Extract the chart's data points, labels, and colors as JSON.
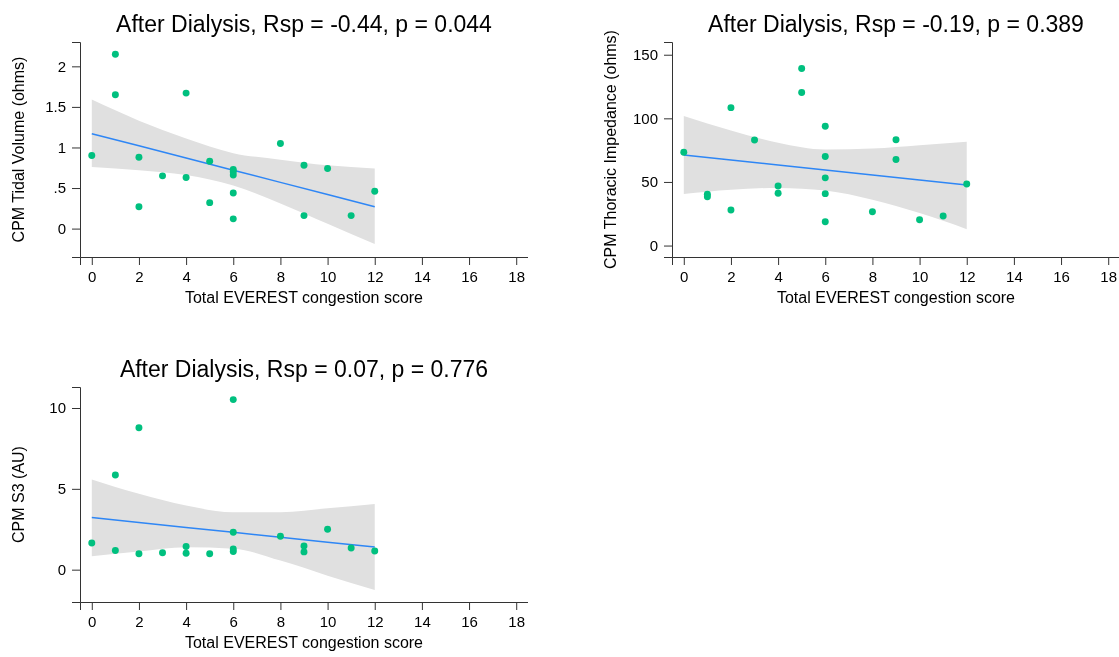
{
  "chart_data": [
    {
      "type": "scatter",
      "title": "After Dialysis, Rsp = -0.44, p = 0.044",
      "xlabel": "Total EVEREST congestion score",
      "ylabel": "CPM Tidal Volume (ohms)",
      "xlim": [
        -0.5,
        18.5
      ],
      "xticks": [
        0,
        2,
        4,
        6,
        8,
        10,
        12,
        14,
        16,
        18
      ],
      "ylim": [
        -0.35,
        2.3
      ],
      "yticks": [
        0,
        {
          "value": 0.5,
          "label": ".5"
        },
        1,
        {
          "value": 1.5,
          "label": "1.5"
        },
        2
      ],
      "grid": false,
      "series": [
        {
          "marker": "circle",
          "color": "#00c07f",
          "x": [
            0,
            1,
            1,
            2,
            2,
            3,
            4,
            4,
            5,
            5,
            6,
            6,
            6,
            6,
            6,
            8,
            9,
            9,
            10,
            11,
            12
          ],
          "values": [
            0.9,
            2.15,
            1.65,
            0.88,
            0.27,
            0.65,
            1.67,
            0.63,
            0.83,
            0.32,
            0.73,
            0.66,
            0.7,
            0.44,
            0.12,
            1.05,
            0.78,
            0.16,
            0.74,
            0.16,
            0.46
          ]
        },
        {
          "type": "line",
          "marker": "none",
          "color": "#2e86f5",
          "line_style": "solid",
          "x": [
            0,
            2,
            4,
            6,
            8,
            10,
            12
          ],
          "values": [
            1.17,
            1.02,
            0.87,
            0.72,
            0.57,
            0.42,
            0.27
          ],
          "lower": [
            0.76,
            0.72,
            0.66,
            0.53,
            0.31,
            0.06,
            -0.19
          ],
          "upper": [
            1.59,
            1.33,
            1.11,
            0.93,
            0.85,
            0.78,
            0.74
          ]
        }
      ]
    },
    {
      "type": "scatter",
      "title": "After Dialysis, Rsp = -0.19, p = 0.389",
      "xlabel": "Total EVEREST congestion score",
      "ylabel": "CPM Thoracic Impedance (ohms)",
      "xlim": [
        -0.5,
        18.5
      ],
      "xticks": [
        0,
        2,
        4,
        6,
        8,
        10,
        12,
        14,
        16,
        18
      ],
      "ylim": [
        -9,
        160
      ],
      "yticks": [
        0,
        50,
        100,
        150
      ],
      "grid": false,
      "series": [
        {
          "marker": "circle",
          "color": "#00c07f",
          "x": [
            0,
            1,
            1,
            2,
            2,
            3,
            4,
            4,
            5,
            5,
            6,
            6,
            6,
            6,
            6,
            8,
            9,
            9,
            10,
            11,
            12
          ],
          "values": [
            73.4,
            40.3,
            38.4,
            108.4,
            27.9,
            82.9,
            46.8,
            41.1,
            139.2,
            120.3,
            93.7,
            70,
            53.2,
            40.8,
            18.7,
            26.6,
            83.2,
            67.6,
            20.3,
            23.2,
            48.4
          ]
        },
        {
          "type": "line",
          "marker": "none",
          "color": "#2e86f5",
          "line_style": "solid",
          "x": [
            0,
            2,
            4,
            6,
            8,
            10,
            12
          ],
          "values": [
            71.1,
            67.2,
            63.3,
            59.4,
            55.4,
            51.5,
            47.6
          ],
          "lower": [
            40.5,
            43.9,
            45.3,
            43.2,
            36,
            25.5,
            12.9
          ],
          "upper": [
            101.8,
            90.5,
            80.8,
            75.5,
            76.3,
            78.9,
            81.6
          ]
        }
      ]
    },
    {
      "type": "scatter",
      "title": "After Dialysis, Rsp = 0.07, p = 0.776",
      "xlabel": "Total EVEREST congestion score",
      "ylabel": "CPM S3 (AU)",
      "xlim": [
        -0.5,
        18.5
      ],
      "xticks": [
        0,
        2,
        4,
        6,
        8,
        10,
        12,
        14,
        16,
        18
      ],
      "ylim": [
        -2,
        11.3
      ],
      "yticks": [
        0,
        5,
        10
      ],
      "grid": false,
      "series": [
        {
          "marker": "circle",
          "color": "#00c07f",
          "x": [
            0,
            1,
            1,
            2,
            2,
            3,
            4,
            4,
            5,
            6,
            6,
            6,
            6,
            8,
            9,
            9,
            10,
            11,
            12
          ],
          "values": [
            1.65,
            5.85,
            1.18,
            8.78,
            0.99,
            1.05,
            1.43,
            1.01,
            0.99,
            10.52,
            2.31,
            1.28,
            1.12,
            2.07,
            1.47,
            1.1,
            2.5,
            1.34,
            1.16
          ]
        },
        {
          "type": "line",
          "marker": "none",
          "color": "#2e86f5",
          "line_style": "solid",
          "x": [
            0,
            2,
            4,
            6,
            8,
            10,
            12
          ],
          "values": [
            3.22,
            2.92,
            2.61,
            2.31,
            2.01,
            1.7,
            1.4
          ],
          "lower": [
            0.83,
            1.12,
            1.38,
            1.3,
            0.56,
            -0.37,
            -1.26
          ],
          "upper": [
            5.58,
            4.69,
            3.97,
            3.55,
            3.55,
            3.8,
            4.07
          ]
        }
      ]
    }
  ]
}
